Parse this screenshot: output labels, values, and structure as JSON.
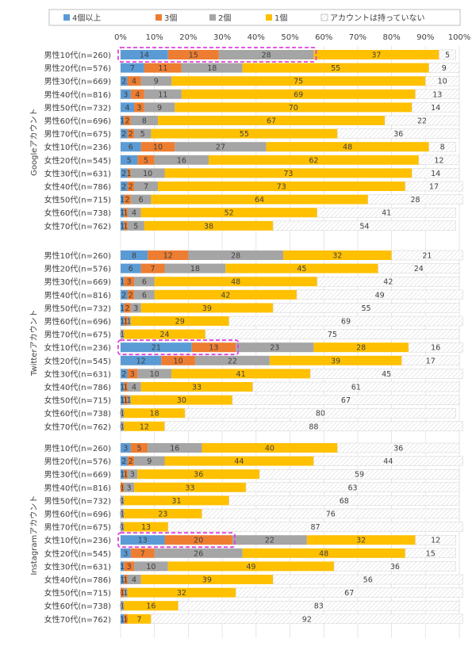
{
  "chart_data": {
    "type": "bar",
    "stacked": true,
    "orientation": "horizontal",
    "percent_axis": [
      "0%",
      "10%",
      "20%",
      "30%",
      "40%",
      "50%",
      "60%",
      "70%",
      "80%",
      "90%",
      "100%"
    ],
    "xlim": [
      0,
      100
    ],
    "legend_position": "top",
    "series": [
      {
        "name": "4個以上",
        "color": "#5B9BD5"
      },
      {
        "name": "3個",
        "color": "#ED7D31"
      },
      {
        "name": "2個",
        "color": "#A5A5A5"
      },
      {
        "name": "1個",
        "color": "#FFC000"
      },
      {
        "name": "アカウントは持っていない",
        "color": "#F2F2F2",
        "hatched": true
      }
    ],
    "groups": [
      {
        "label": "Googleアカウント",
        "rows": [
          {
            "label": "男性10代(n=260)",
            "values": [
              14,
              15,
              28,
              37,
              5
            ]
          },
          {
            "label": "男性20代(n=576)",
            "values": [
              7,
              11,
              18,
              55,
              9
            ]
          },
          {
            "label": "男性30代(n=669)",
            "values": [
              2,
              4,
              9,
              75,
              10
            ]
          },
          {
            "label": "男性40代(n=816)",
            "values": [
              3,
              4,
              11,
              69,
              13
            ]
          },
          {
            "label": "男性50代(n=732)",
            "values": [
              4,
              3,
              9,
              70,
              14
            ]
          },
          {
            "label": "男性60代(n=696)",
            "values": [
              1,
              2,
              8,
              67,
              22
            ]
          },
          {
            "label": "男性70代(n=675)",
            "values": [
              2,
              2,
              5,
              55,
              36
            ]
          },
          {
            "label": "女性10代(n=236)",
            "values": [
              6,
              10,
              27,
              48,
              8
            ]
          },
          {
            "label": "女性20代(n=545)",
            "values": [
              5,
              5,
              16,
              62,
              12
            ]
          },
          {
            "label": "女性30代(n=631)",
            "values": [
              2,
              1,
              10,
              73,
              14
            ]
          },
          {
            "label": "女性40代(n=786)",
            "values": [
              2,
              2,
              7,
              73,
              17
            ]
          },
          {
            "label": "女性50代(n=715)",
            "values": [
              1,
              2,
              6,
              64,
              28
            ]
          },
          {
            "label": "女性60代(n=738)",
            "values": [
              1,
              1,
              4,
              52,
              41
            ]
          },
          {
            "label": "女性70代(n=762)",
            "values": [
              1,
              1,
              5,
              38,
              54
            ]
          }
        ]
      },
      {
        "label": "Twitterアカウント",
        "rows": [
          {
            "label": "男性10代(n=260)",
            "values": [
              8,
              12,
              28,
              32,
              21
            ]
          },
          {
            "label": "男性20代(n=576)",
            "values": [
              6,
              7,
              18,
              45,
              24
            ]
          },
          {
            "label": "男性30代(n=669)",
            "values": [
              1,
              3,
              6,
              48,
              42
            ]
          },
          {
            "label": "男性40代(n=816)",
            "values": [
              2,
              2,
              6,
              42,
              49
            ]
          },
          {
            "label": "男性50代(n=732)",
            "values": [
              1,
              2,
              3,
              39,
              55
            ]
          },
          {
            "label": "男性60代(n=696)",
            "values": [
              1,
              1,
              1,
              29,
              69
            ]
          },
          {
            "label": "男性70代(n=675)",
            "values": [
              0,
              0,
              1,
              24,
              75
            ]
          },
          {
            "label": "女性10代(n=236)",
            "values": [
              21,
              13,
              23,
              28,
              16
            ]
          },
          {
            "label": "女性20代(n=545)",
            "values": [
              12,
              10,
              22,
              39,
              17
            ]
          },
          {
            "label": "女性30代(n=631)",
            "values": [
              2,
              3,
              10,
              41,
              45
            ]
          },
          {
            "label": "女性40代(n=786)",
            "values": [
              1,
              1,
              4,
              33,
              61
            ]
          },
          {
            "label": "女性50代(n=715)",
            "values": [
              1,
              1,
              1,
              30,
              67
            ]
          },
          {
            "label": "女性60代(n=738)",
            "values": [
              0,
              0,
              1,
              18,
              80
            ]
          },
          {
            "label": "女性70代(n=762)",
            "values": [
              0,
              0,
              1,
              12,
              88
            ]
          }
        ]
      },
      {
        "label": "Instagramアカウント",
        "rows": [
          {
            "label": "男性10代(n=260)",
            "values": [
              3,
              5,
              16,
              40,
              36
            ]
          },
          {
            "label": "男性20代(n=576)",
            "values": [
              2,
              2,
              9,
              44,
              44
            ]
          },
          {
            "label": "男性30代(n=669)",
            "values": [
              1,
              1,
              3,
              36,
              59
            ]
          },
          {
            "label": "男性40代(n=816)",
            "values": [
              0,
              1,
              3,
              33,
              63
            ]
          },
          {
            "label": "男性50代(n=732)",
            "values": [
              0,
              0,
              1,
              31,
              68
            ]
          },
          {
            "label": "男性60代(n=696)",
            "values": [
              0,
              0,
              1,
              23,
              76
            ]
          },
          {
            "label": "男性70代(n=675)",
            "values": [
              0,
              0,
              1,
              13,
              87
            ]
          },
          {
            "label": "女性10代(n=236)",
            "values": [
              13,
              20,
              22,
              32,
              12
            ]
          },
          {
            "label": "女性20代(n=545)",
            "values": [
              3,
              7,
              26,
              48,
              15
            ]
          },
          {
            "label": "女性30代(n=631)",
            "values": [
              1,
              3,
              10,
              49,
              36
            ]
          },
          {
            "label": "女性40代(n=786)",
            "values": [
              1,
              1,
              4,
              39,
              56
            ]
          },
          {
            "label": "女性50代(n=715)",
            "values": [
              0,
              1,
              1,
              32,
              67
            ]
          },
          {
            "label": "女性60代(n=738)",
            "values": [
              0,
              0,
              1,
              16,
              83
            ]
          },
          {
            "label": "女性70代(n=762)",
            "values": [
              1,
              1,
              0,
              7,
              92
            ]
          }
        ]
      }
    ],
    "highlights": [
      {
        "group": 0,
        "row": 0,
        "series_count": 3
      },
      {
        "group": 1,
        "row": 7,
        "series_count": 2
      },
      {
        "group": 2,
        "row": 7,
        "series_count": 2
      }
    ]
  }
}
